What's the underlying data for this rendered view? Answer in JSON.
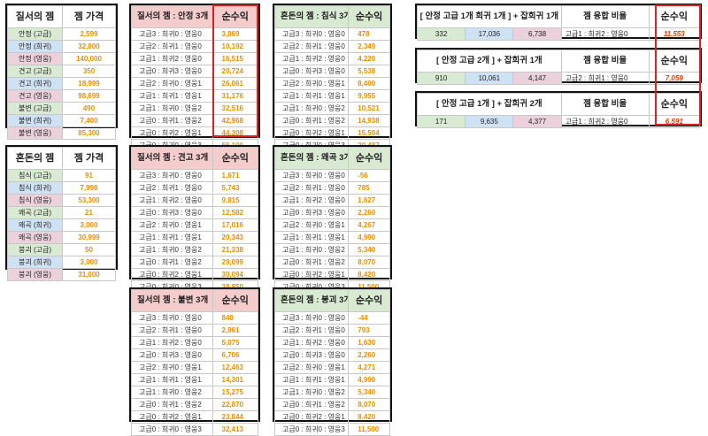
{
  "order_prices": {
    "title": "질서의 젬",
    "price_header": "젬 가격",
    "rows": [
      {
        "name": "안정 (고급)",
        "price": "2,599",
        "color": "green"
      },
      {
        "name": "안정 (희귀)",
        "price": "32,800",
        "color": "blue"
      },
      {
        "name": "안정 (영웅)",
        "price": "140,000",
        "color": "pink"
      },
      {
        "name": "견고 (고급)",
        "price": "350",
        "color": "green"
      },
      {
        "name": "견고 (희귀)",
        "price": "18,999",
        "color": "blue"
      },
      {
        "name": "견고 (영웅)",
        "price": "98,699",
        "color": "pink"
      },
      {
        "name": "불변 (고급)",
        "price": "490",
        "color": "green"
      },
      {
        "name": "불변 (희귀)",
        "price": "7,400",
        "color": "blue"
      },
      {
        "name": "불변 (영웅)",
        "price": "85,300",
        "color": "pink"
      }
    ]
  },
  "chaos_prices": {
    "title": "혼돈의 젬",
    "price_header": "젬 가격",
    "rows": [
      {
        "name": "침식 (고급)",
        "price": "91",
        "color": "green"
      },
      {
        "name": "침식 (희귀)",
        "price": "7,998",
        "color": "blue"
      },
      {
        "name": "침식 (영웅)",
        "price": "53,300",
        "color": "pink"
      },
      {
        "name": "왜곡 (고급)",
        "price": "21",
        "color": "green"
      },
      {
        "name": "왜곡 (희귀)",
        "price": "3,000",
        "color": "blue"
      },
      {
        "name": "왜곡 (영웅)",
        "price": "30,999",
        "color": "pink"
      },
      {
        "name": "붕괴 (고급)",
        "price": "50",
        "color": "green"
      },
      {
        "name": "붕괴 (희귀)",
        "price": "3,000",
        "color": "blue"
      },
      {
        "name": "붕괴 (영웅)",
        "price": "31,000",
        "color": "pink"
      }
    ]
  },
  "combos": [
    "고급3 : 희귀0 : 영웅0",
    "고급2 : 희귀1 : 영웅0",
    "고급1 : 희귀2 : 영웅0",
    "고급0 : 희귀3 : 영웅0",
    "고급2 : 희귀0 : 영웅1",
    "고급1 : 희귀1 : 영웅1",
    "고급1 : 희귀0 : 영웅2",
    "고급0 : 희귀1 : 영웅2",
    "고급0 : 희귀2 : 영웅1",
    "고급0 : 희귀0 : 영웅3"
  ],
  "profit_header": "순수익",
  "profit_tables": [
    {
      "title": "질서의 젬 : 안정 3개",
      "values": [
        "3,869",
        "10,192",
        "16,515",
        "20,724",
        "26,061",
        "31,176",
        "32,516",
        "42,968",
        "44,308",
        "56,100"
      ]
    },
    {
      "title": "혼돈의 젬 : 침식 3개",
      "values": [
        "478",
        "2,349",
        "4,220",
        "5,538",
        "8,400",
        "9,955",
        "10,521",
        "14,938",
        "15,504",
        "20,487"
      ]
    },
    {
      "title": "질서의 젬 : 견고 3개",
      "values": [
        "1,671",
        "5,743",
        "9,815",
        "12,582",
        "17,016",
        "20,343",
        "21,338",
        "29,099",
        "30,094",
        "38,850"
      ]
    },
    {
      "title": "혼돈의 젬 : 왜곡 3개",
      "values": [
        "-56",
        "785",
        "1,627",
        "2,260",
        "4,267",
        "4,990",
        "5,340",
        "8,070",
        "8,420",
        "11,500"
      ]
    },
    {
      "title": "질서의 젬 : 불변 3개",
      "values": [
        "848",
        "2,961",
        "5,075",
        "6,706",
        "12,463",
        "14,301",
        "15,275",
        "22,870",
        "23,844",
        "32,413"
      ]
    },
    {
      "title": "혼돈의 젬 : 붕괴 3개",
      "values": [
        "-44",
        "793",
        "1,630",
        "2,260",
        "4,271",
        "4,990",
        "5,340",
        "8,070",
        "8,420",
        "11,500"
      ]
    }
  ],
  "fusion_header": "젬 융합 비율",
  "fusion_tables": [
    {
      "title": "[ 안정 고급 1개 희귀 1개 ] + 잡희귀 1개",
      "vals": [
        "332",
        "17,036",
        "6,738"
      ],
      "ratio": "고급1 : 희귀2 : 영웅0",
      "profit": "11,553"
    },
    {
      "title": "[ 안정 고급 2개 ] + 잡희귀 1개",
      "vals": [
        "910",
        "10,061",
        "4,147"
      ],
      "ratio": "고급2 : 희귀1 : 영웅0",
      "profit": "7,059"
    },
    {
      "title": "[ 안정 고급 1개 ] + 잡희귀 2개",
      "vals": [
        "171",
        "9,635",
        "4,377"
      ],
      "ratio": "고급1 : 희귀2 : 영웅0",
      "profit": "6,591"
    }
  ]
}
